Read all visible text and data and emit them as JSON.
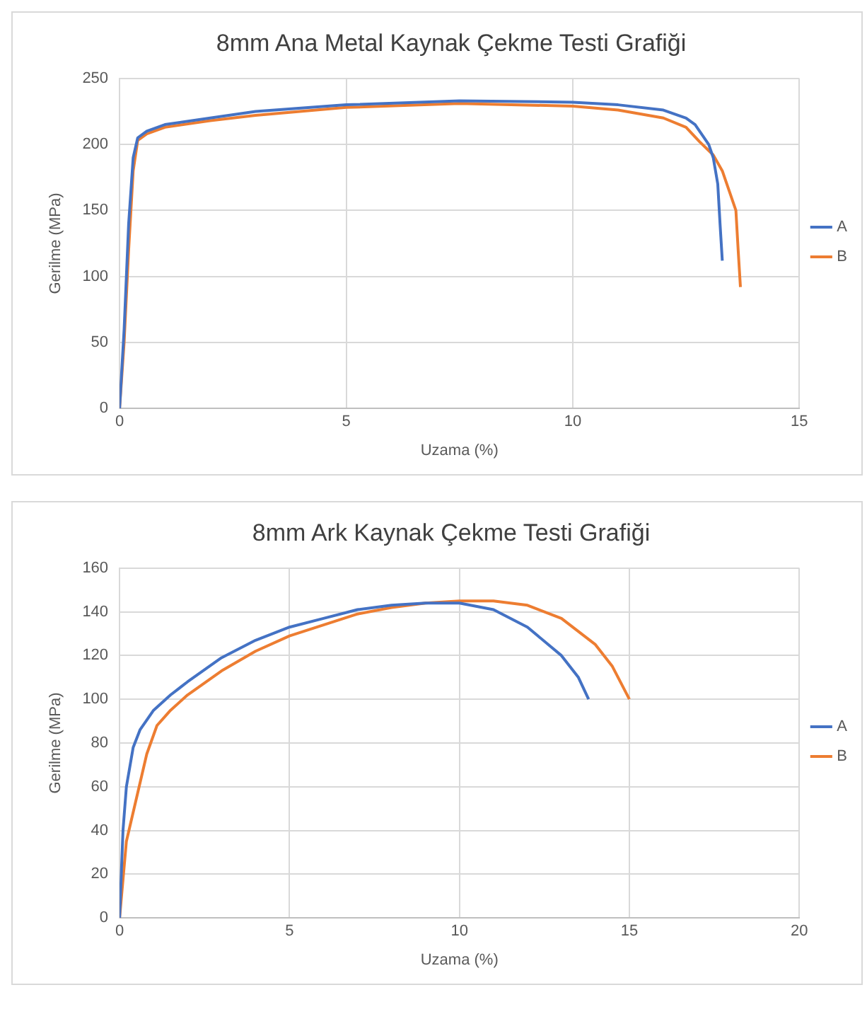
{
  "chart_data": [
    {
      "type": "line",
      "title": "8mm Ana Metal Kaynak Çekme Testi Grafiği",
      "xlabel": "Uzama (%)",
      "ylabel": "Gerilme (MPa)",
      "xlim": [
        0,
        15
      ],
      "xticks": [
        0,
        5,
        10,
        15
      ],
      "ylim": [
        0,
        250
      ],
      "yticks": [
        0,
        50,
        100,
        150,
        200,
        250
      ],
      "grid": true,
      "legend": "right",
      "marker": "none",
      "series": [
        {
          "name": "A",
          "color": "#4472c4",
          "x": [
            0,
            0.1,
            0.2,
            0.3,
            0.4,
            0.6,
            1,
            2,
            3,
            5,
            7.5,
            10,
            11,
            12,
            12.5,
            12.7,
            13,
            13.1,
            13.2,
            13.25,
            13.3
          ],
          "values": [
            0,
            60,
            140,
            190,
            205,
            210,
            215,
            220,
            225,
            230,
            233,
            232,
            230,
            226,
            220,
            215,
            200,
            190,
            170,
            140,
            112
          ]
        },
        {
          "name": "B",
          "color": "#ed7d31",
          "x": [
            0,
            0.1,
            0.2,
            0.3,
            0.4,
            0.6,
            1,
            2,
            3,
            5,
            7.5,
            10,
            11,
            12,
            12.5,
            12.8,
            13.1,
            13.3,
            13.5,
            13.6,
            13.65,
            13.7
          ],
          "values": [
            0,
            50,
            120,
            180,
            203,
            208,
            213,
            218,
            222,
            228,
            231,
            229,
            226,
            220,
            213,
            202,
            192,
            180,
            160,
            150,
            120,
            92
          ]
        }
      ]
    },
    {
      "type": "line",
      "title": "8mm Ark Kaynak Çekme Testi Grafiği",
      "xlabel": "Uzama (%)",
      "ylabel": "Gerilme (MPa)",
      "xlim": [
        0,
        20
      ],
      "xticks": [
        0,
        5,
        10,
        15,
        20
      ],
      "ylim": [
        0,
        160
      ],
      "yticks": [
        0,
        20,
        40,
        60,
        80,
        100,
        120,
        140,
        160
      ],
      "grid": true,
      "legend": "right",
      "marker": "none",
      "series": [
        {
          "name": "A",
          "color": "#4472c4",
          "x": [
            0,
            0.1,
            0.2,
            0.4,
            0.6,
            1,
            1.5,
            2,
            3,
            4,
            5,
            6,
            7,
            8,
            9,
            10,
            11,
            12,
            13,
            13.5,
            13.8
          ],
          "values": [
            0,
            40,
            60,
            78,
            86,
            95,
            102,
            108,
            119,
            127,
            133,
            137,
            141,
            143,
            144,
            144,
            141,
            133,
            120,
            110,
            100
          ]
        },
        {
          "name": "B",
          "color": "#ed7d31",
          "x": [
            0,
            0.2,
            0.5,
            0.8,
            1.1,
            1.5,
            2,
            3,
            4,
            5,
            6,
            7,
            8,
            9,
            10,
            11,
            12,
            13,
            14,
            14.5,
            15
          ],
          "values": [
            0,
            35,
            55,
            75,
            88,
            95,
            102,
            113,
            122,
            129,
            134,
            139,
            142,
            144,
            145,
            145,
            143,
            137,
            125,
            115,
            100
          ]
        }
      ]
    }
  ]
}
